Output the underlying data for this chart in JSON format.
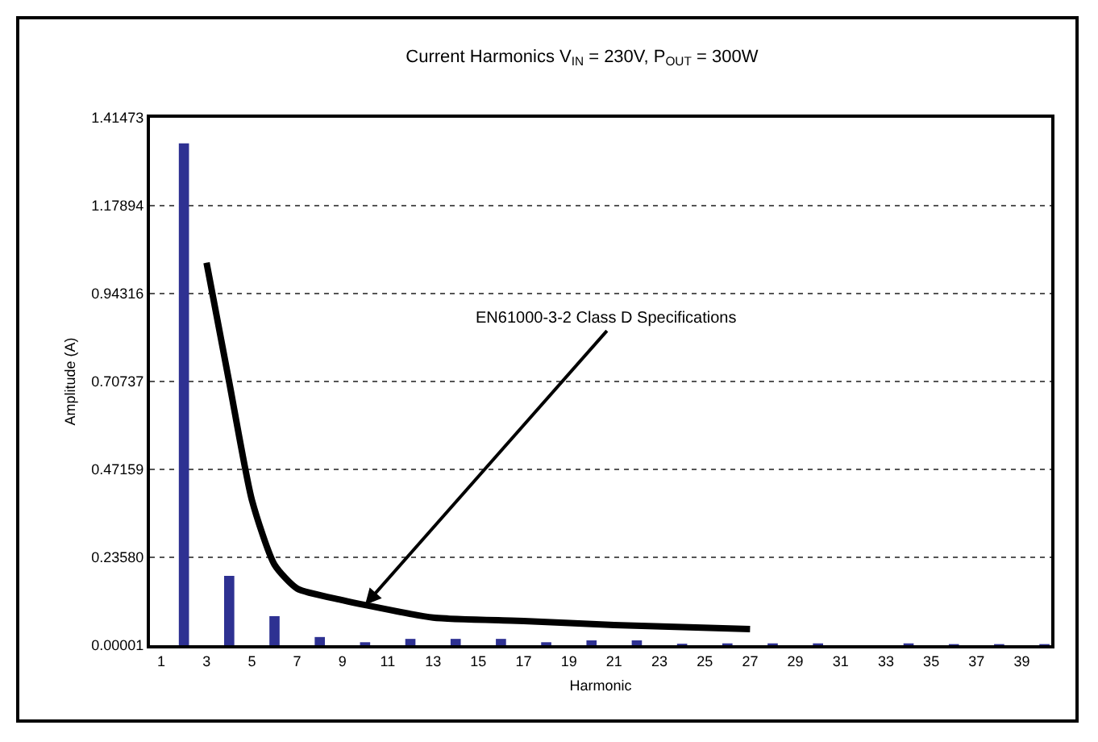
{
  "chart_data": {
    "type": "bar",
    "title": "Current Harmonics V$_{IN}$ = 230V, P$_{OUT}$ = 300W",
    "xlabel": "Harmonic",
    "ylabel": "Amplitude (A)",
    "x": [
      2,
      4,
      6,
      8,
      10,
      12,
      14,
      16,
      18,
      20,
      22,
      24,
      26,
      28,
      30,
      32,
      34,
      36,
      38,
      40
    ],
    "series": [
      {
        "color": "#2e3192",
        "values": [
          1.346,
          0.186,
          0.078,
          0.022,
          0.008,
          0.017,
          0.017,
          0.017,
          0.008,
          0.013,
          0.013,
          0.004,
          0.005,
          0.005,
          0.005,
          null,
          0.005,
          0.003,
          0.003,
          0.003
        ]
      },
      {
        "type": "line",
        "color": "#000000",
        "x": [
          3,
          4,
          5,
          6,
          7,
          9,
          10,
          13,
          17,
          21,
          27
        ],
        "values": [
          1.026,
          0.706,
          0.39,
          0.216,
          0.152,
          0.121,
          0.108,
          0.074,
          0.065,
          0.054,
          0.043
        ]
      }
    ],
    "annotations": [
      {
        "text": "EN61000-3-2 Class D Specifications",
        "x": 10,
        "y": 0.108
      }
    ],
    "xlim": [
      0.5,
      40.3
    ],
    "xticks": [
      1,
      3,
      5,
      7,
      9,
      11,
      13,
      15,
      17,
      19,
      21,
      23,
      25,
      27,
      29,
      31,
      33,
      35,
      37,
      39
    ],
    "ylim": [
      1e-05,
      1.41473
    ],
    "yticks": [
      {
        "value": 1e-05,
        "label": "0.00001"
      },
      {
        "value": 0.2358,
        "label": "0.23580"
      },
      0.47159,
      0.70737,
      0.94316,
      1.17894,
      1.41473
    ],
    "grid": "y",
    "line_style": "solid",
    "marker": "none"
  }
}
